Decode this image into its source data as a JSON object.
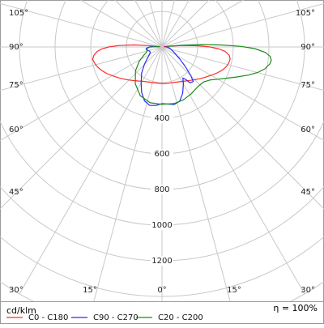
{
  "chart_data": {
    "type": "polar",
    "unit_label": "cd/klm",
    "efficiency_label": "η = 100%",
    "radial_ticks": [
      {
        "value": 400,
        "label": "400"
      },
      {
        "value": 600,
        "label": "600"
      },
      {
        "value": 800,
        "label": "800"
      },
      {
        "value": 1000,
        "label": "1000"
      },
      {
        "value": 1200,
        "label": "1200"
      }
    ],
    "angle_labels": [
      {
        "angle": -105,
        "label": "105°"
      },
      {
        "angle": 105,
        "label": "105°"
      },
      {
        "angle": -90,
        "label": "90°"
      },
      {
        "angle": 90,
        "label": "90°"
      },
      {
        "angle": -75,
        "label": "75°"
      },
      {
        "angle": 75,
        "label": "75°"
      },
      {
        "angle": -60,
        "label": "60°"
      },
      {
        "angle": 60,
        "label": "60°"
      },
      {
        "angle": -45,
        "label": "45°"
      },
      {
        "angle": 45,
        "label": "45°"
      },
      {
        "angle": -30,
        "label": "30°"
      },
      {
        "angle": 30,
        "label": "30°"
      },
      {
        "angle": -15,
        "label": "15°"
      },
      {
        "angle": 15,
        "label": "15°"
      },
      {
        "angle": 0,
        "label": "0°"
      }
    ],
    "series": [
      {
        "name": "C0 - C180",
        "color": "#ff2a2a",
        "points": [
          [
            -98,
            10
          ],
          [
            -96,
            80
          ],
          [
            -94,
            160
          ],
          [
            -92,
            240
          ],
          [
            -90,
            300
          ],
          [
            -88,
            340
          ],
          [
            -86,
            365
          ],
          [
            -83,
            385
          ],
          [
            -80,
            395
          ],
          [
            -77,
            390
          ],
          [
            -74,
            383
          ],
          [
            -71,
            372
          ],
          [
            -68,
            360
          ],
          [
            -64,
            342
          ],
          [
            -60,
            322
          ],
          [
            -55,
            300
          ],
          [
            -50,
            280
          ],
          [
            -45,
            262
          ],
          [
            -40,
            246
          ],
          [
            -35,
            233
          ],
          [
            -30,
            222
          ],
          [
            -25,
            215
          ],
          [
            -20,
            210
          ],
          [
            -15,
            207
          ],
          [
            -10,
            205
          ],
          [
            -5,
            205
          ],
          [
            0,
            205
          ],
          [
            5,
            206
          ],
          [
            10,
            207
          ],
          [
            15,
            208
          ],
          [
            20,
            211
          ],
          [
            25,
            216
          ],
          [
            30,
            223
          ],
          [
            35,
            233
          ],
          [
            40,
            245
          ],
          [
            45,
            260
          ],
          [
            50,
            277
          ],
          [
            55,
            296
          ],
          [
            60,
            318
          ],
          [
            64,
            338
          ],
          [
            68,
            358
          ],
          [
            71,
            370
          ],
          [
            74,
            380
          ],
          [
            77,
            386
          ],
          [
            80,
            388
          ],
          [
            83,
            380
          ],
          [
            86,
            355
          ],
          [
            88,
            320
          ],
          [
            90,
            270
          ],
          [
            92,
            200
          ],
          [
            94,
            120
          ],
          [
            96,
            50
          ],
          [
            98,
            10
          ]
        ]
      },
      {
        "name": "C90 - C270",
        "color": "#2a2aff",
        "points": [
          [
            -95,
            20
          ],
          [
            -92,
            60
          ],
          [
            -88,
            80
          ],
          [
            -84,
            90
          ],
          [
            -80,
            88
          ],
          [
            -76,
            80
          ],
          [
            -72,
            74
          ],
          [
            -66,
            72
          ],
          [
            -60,
            80
          ],
          [
            -52,
            105
          ],
          [
            -45,
            140
          ],
          [
            -38,
            185
          ],
          [
            -30,
            235
          ],
          [
            -24,
            280
          ],
          [
            -18,
            318
          ],
          [
            -12,
            335
          ],
          [
            -6,
            330
          ],
          [
            0,
            318
          ],
          [
            6,
            322
          ],
          [
            12,
            330
          ],
          [
            18,
            320
          ],
          [
            24,
            285
          ],
          [
            30,
            240
          ],
          [
            34,
            210
          ],
          [
            36,
            225
          ],
          [
            38,
            255
          ],
          [
            42,
            262
          ],
          [
            45,
            230
          ],
          [
            50,
            170
          ],
          [
            56,
            120
          ],
          [
            64,
            80
          ],
          [
            72,
            58
          ],
          [
            80,
            45
          ],
          [
            88,
            30
          ],
          [
            95,
            15
          ]
        ]
      },
      {
        "name": "C20 - C200",
        "color": "#1a8c1a",
        "points": [
          [
            -95,
            15
          ],
          [
            -92,
            45
          ],
          [
            -89,
            70
          ],
          [
            -86,
            82
          ],
          [
            -82,
            86
          ],
          [
            -77,
            85
          ],
          [
            -72,
            90
          ],
          [
            -66,
            110
          ],
          [
            -58,
            150
          ],
          [
            -48,
            200
          ],
          [
            -36,
            255
          ],
          [
            -24,
            300
          ],
          [
            -12,
            320
          ],
          [
            0,
            322
          ],
          [
            12,
            325
          ],
          [
            22,
            320
          ],
          [
            32,
            310
          ],
          [
            42,
            300
          ],
          [
            50,
            305
          ],
          [
            56,
            330
          ],
          [
            60,
            362
          ],
          [
            64,
            400
          ],
          [
            68,
            450
          ],
          [
            72,
            510
          ],
          [
            75,
            555
          ],
          [
            78,
            590
          ],
          [
            81,
            612
          ],
          [
            83,
            618
          ],
          [
            85,
            610
          ],
          [
            87,
            580
          ],
          [
            89,
            520
          ],
          [
            90.5,
            440
          ],
          [
            92,
            330
          ],
          [
            93.5,
            220
          ],
          [
            95,
            110
          ],
          [
            96.5,
            30
          ]
        ]
      }
    ]
  }
}
